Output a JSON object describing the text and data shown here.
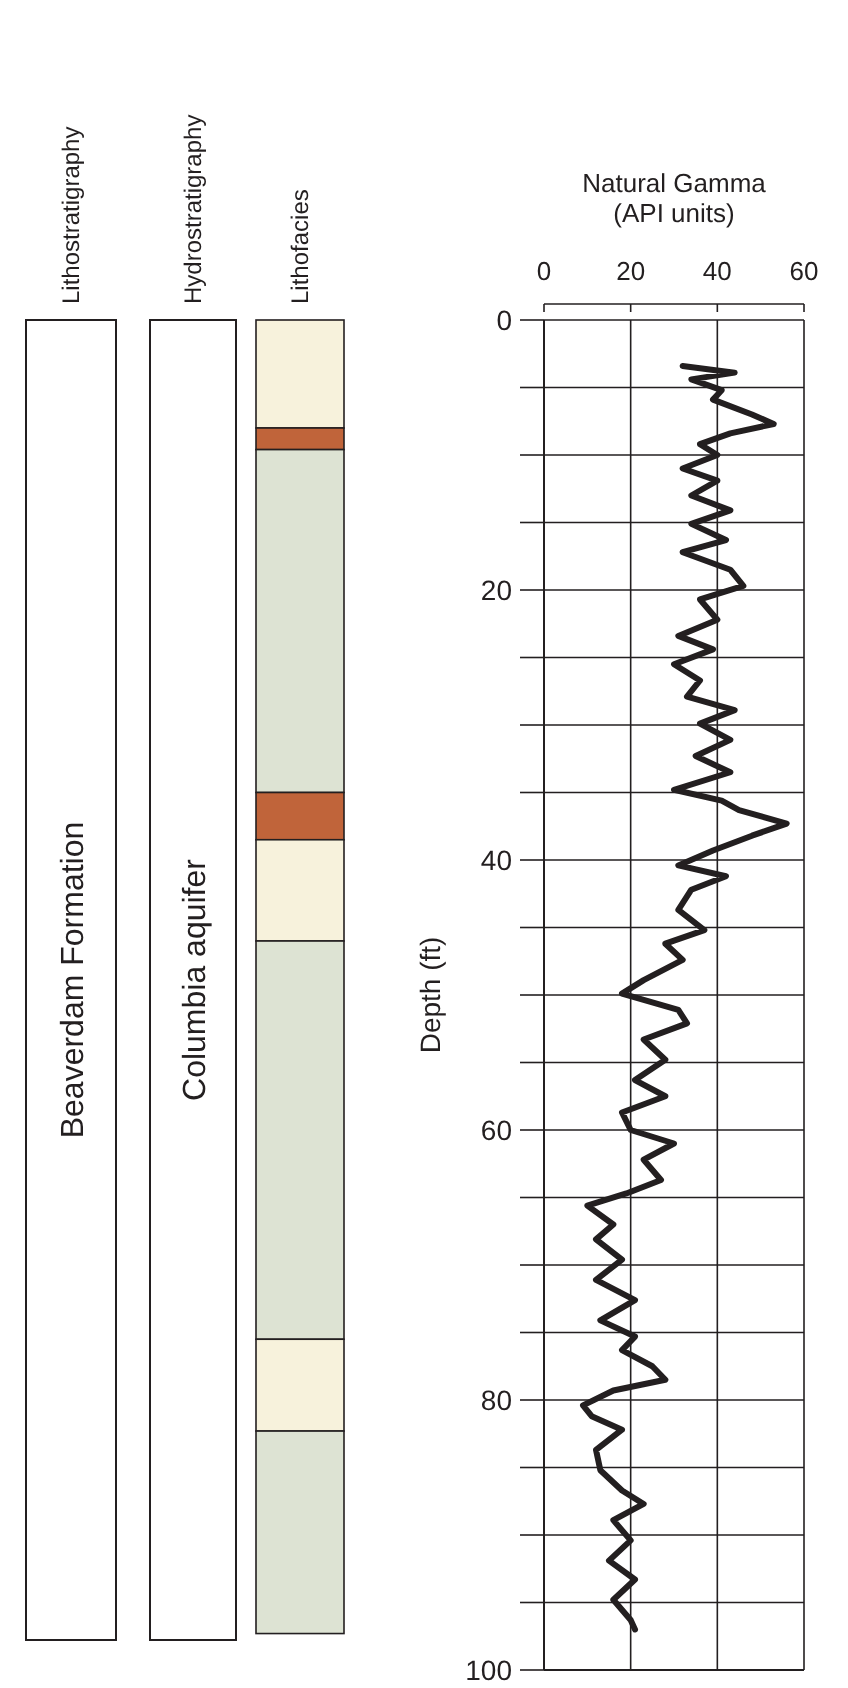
{
  "chart_data": [
    {
      "type": "other",
      "annotations": [
        "Lithostratigraphy",
        "Beaverdam Formation",
        "Hydrostratigraphy",
        "Columbia aquifer"
      ]
    },
    {
      "type": "bar",
      "stacked": true,
      "categories": [
        "Lithofacies"
      ],
      "ylim": [
        100,
        0
      ],
      "series": [
        {
          "color": "#f7f2dc",
          "values": [
            8
          ]
        },
        {
          "color": "#c0643a",
          "values": [
            1.6
          ]
        },
        {
          "color": "#dde3d3",
          "values": [
            25.4
          ]
        },
        {
          "color": "#c0643a",
          "values": [
            3.5
          ]
        },
        {
          "color": "#f7f2dc",
          "values": [
            7.5
          ]
        },
        {
          "color": "#dde3d3",
          "values": [
            29.5
          ]
        },
        {
          "color": "#f7f2dc",
          "values": [
            6.8
          ]
        },
        {
          "color": "#dde3d3",
          "values": [
            15
          ]
        }
      ]
    },
    {
      "type": "line",
      "xlabel": "Natural Gamma (API units)",
      "ylabel": "Depth (ft)",
      "xlim": [
        0,
        60
      ],
      "xticks": [
        0,
        20,
        40,
        60
      ],
      "ylim": [
        100,
        0
      ],
      "yticks": [
        0,
        {
          "value": 5,
          "label": null
        },
        {
          "value": 10,
          "label": null
        },
        {
          "value": 15,
          "label": null
        },
        20,
        {
          "value": 25,
          "label": null
        },
        {
          "value": 30,
          "label": null
        },
        {
          "value": 35,
          "label": null
        },
        40,
        {
          "value": 45,
          "label": null
        },
        {
          "value": 50,
          "label": null
        },
        {
          "value": 55,
          "label": null
        },
        60,
        {
          "value": 65,
          "label": null
        },
        {
          "value": 70,
          "label": null
        },
        {
          "value": 75,
          "label": null
        },
        80,
        {
          "value": 85,
          "label": null
        },
        {
          "value": 90,
          "label": null
        },
        {
          "value": 95,
          "label": null
        },
        100
      ],
      "grid": true,
      "marker": "none",
      "line_style": "solid",
      "series": [
        {
          "color": "#231f20",
          "x": [
            32,
            44,
            34,
            41,
            39,
            48,
            53,
            43,
            36,
            40,
            32,
            40,
            34,
            43,
            34,
            42,
            32,
            43,
            46,
            36,
            40,
            31,
            39,
            30,
            36,
            33,
            44,
            36,
            43,
            35,
            43,
            30,
            41,
            45,
            56,
            48,
            39,
            31,
            42,
            34,
            31,
            37,
            28,
            32,
            23,
            18,
            31,
            33,
            23,
            28,
            21,
            28,
            18,
            20,
            30,
            23,
            27,
            19,
            10,
            16,
            12,
            18,
            12,
            21,
            13,
            21,
            18,
            25,
            28,
            16,
            9,
            11,
            18,
            12,
            13,
            18,
            23,
            16,
            20,
            15,
            21,
            16,
            20,
            21
          ],
          "values": [
            3.4,
            3.9,
            4.4,
            5.2,
            5.9,
            7,
            7.7,
            8.4,
            9.2,
            10,
            11,
            11.9,
            13,
            14.1,
            15.1,
            16.3,
            17.2,
            18.5,
            19.7,
            20.7,
            22.2,
            23.4,
            24.4,
            25.5,
            26.7,
            27.9,
            28.9,
            29.9,
            31.1,
            32.3,
            33.5,
            34.8,
            35.6,
            36.3,
            37.3,
            38.2,
            39.3,
            40.4,
            41.2,
            42.2,
            43.7,
            45.2,
            46.2,
            47.4,
            48.9,
            49.9,
            51.1,
            52.1,
            53.3,
            54.8,
            56.3,
            57.5,
            58.7,
            60,
            61,
            62.2,
            63.7,
            64.7,
            65.6,
            67,
            68.1,
            69.6,
            71.1,
            72.6,
            74.1,
            75.3,
            76.3,
            77.5,
            78.5,
            79.3,
            80.4,
            81.2,
            82.2,
            83.7,
            85.2,
            86.7,
            87.7,
            88.9,
            90.4,
            91.9,
            93.3,
            94.8,
            96.3,
            97
          ]
        }
      ]
    }
  ]
}
